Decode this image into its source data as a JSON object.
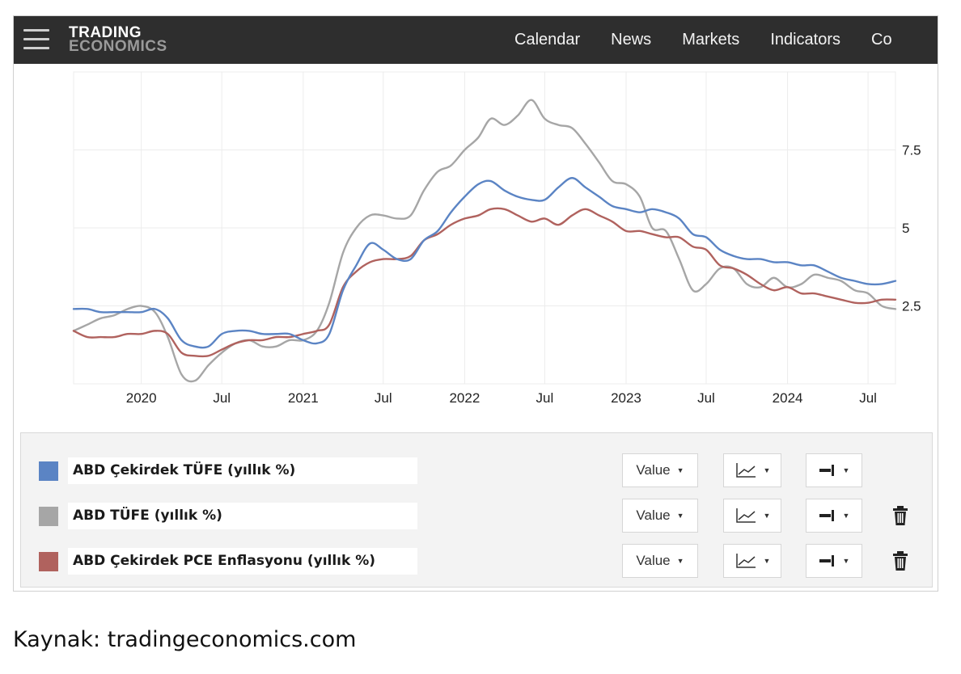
{
  "header": {
    "logo_line1": "TRADING",
    "logo_line2": "ECONOMICS",
    "nav": [
      "Calendar",
      "News",
      "Markets",
      "Indicators",
      "Co"
    ]
  },
  "chart_data": {
    "type": "line",
    "x_ticks": [
      "2020",
      "Jul",
      "2021",
      "Jul",
      "2022",
      "Jul",
      "2023",
      "Jul",
      "2024",
      "Jul"
    ],
    "y_ticks": [
      "2.5",
      "5",
      "7.5"
    ],
    "ylim": [
      0,
      10
    ],
    "grid": true,
    "series": [
      {
        "name": "ABD Çekirdek TÜFE (yıllık %)",
        "color": "#5b84c4",
        "values": [
          [
            "2019-08",
            2.4
          ],
          [
            "2019-09",
            2.4
          ],
          [
            "2019-10",
            2.3
          ],
          [
            "2019-11",
            2.3
          ],
          [
            "2019-12",
            2.3
          ],
          [
            "2020-01",
            2.3
          ],
          [
            "2020-02",
            2.4
          ],
          [
            "2020-03",
            2.1
          ],
          [
            "2020-04",
            1.4
          ],
          [
            "2020-05",
            1.2
          ],
          [
            "2020-06",
            1.2
          ],
          [
            "2020-07",
            1.6
          ],
          [
            "2020-08",
            1.7
          ],
          [
            "2020-09",
            1.7
          ],
          [
            "2020-10",
            1.6
          ],
          [
            "2020-11",
            1.6
          ],
          [
            "2020-12",
            1.6
          ],
          [
            "2021-01",
            1.4
          ],
          [
            "2021-02",
            1.3
          ],
          [
            "2021-03",
            1.6
          ],
          [
            "2021-04",
            3.0
          ],
          [
            "2021-05",
            3.8
          ],
          [
            "2021-06",
            4.5
          ],
          [
            "2021-07",
            4.3
          ],
          [
            "2021-08",
            4.0
          ],
          [
            "2021-09",
            4.0
          ],
          [
            "2021-10",
            4.6
          ],
          [
            "2021-11",
            4.9
          ],
          [
            "2021-12",
            5.5
          ],
          [
            "2022-01",
            6.0
          ],
          [
            "2022-02",
            6.4
          ],
          [
            "2022-03",
            6.5
          ],
          [
            "2022-04",
            6.2
          ],
          [
            "2022-05",
            6.0
          ],
          [
            "2022-06",
            5.9
          ],
          [
            "2022-07",
            5.9
          ],
          [
            "2022-08",
            6.3
          ],
          [
            "2022-09",
            6.6
          ],
          [
            "2022-10",
            6.3
          ],
          [
            "2022-11",
            6.0
          ],
          [
            "2022-12",
            5.7
          ],
          [
            "2023-01",
            5.6
          ],
          [
            "2023-02",
            5.5
          ],
          [
            "2023-03",
            5.6
          ],
          [
            "2023-04",
            5.5
          ],
          [
            "2023-05",
            5.3
          ],
          [
            "2023-06",
            4.8
          ],
          [
            "2023-07",
            4.7
          ],
          [
            "2023-08",
            4.3
          ],
          [
            "2023-09",
            4.1
          ],
          [
            "2023-10",
            4.0
          ],
          [
            "2023-11",
            4.0
          ],
          [
            "2023-12",
            3.9
          ],
          [
            "2024-01",
            3.9
          ],
          [
            "2024-02",
            3.8
          ],
          [
            "2024-03",
            3.8
          ],
          [
            "2024-04",
            3.6
          ],
          [
            "2024-05",
            3.4
          ],
          [
            "2024-06",
            3.3
          ],
          [
            "2024-07",
            3.2
          ],
          [
            "2024-08",
            3.2
          ],
          [
            "2024-09",
            3.3
          ]
        ]
      },
      {
        "name": "ABD TÜFE (yıllık %)",
        "color": "#a6a6a6",
        "values": [
          [
            "2019-08",
            1.7
          ],
          [
            "2019-09",
            1.9
          ],
          [
            "2019-10",
            2.1
          ],
          [
            "2019-11",
            2.2
          ],
          [
            "2019-12",
            2.4
          ],
          [
            "2020-01",
            2.5
          ],
          [
            "2020-02",
            2.3
          ],
          [
            "2020-03",
            1.5
          ],
          [
            "2020-04",
            0.3
          ],
          [
            "2020-05",
            0.1
          ],
          [
            "2020-06",
            0.6
          ],
          [
            "2020-07",
            1.0
          ],
          [
            "2020-08",
            1.3
          ],
          [
            "2020-09",
            1.4
          ],
          [
            "2020-10",
            1.2
          ],
          [
            "2020-11",
            1.2
          ],
          [
            "2020-12",
            1.4
          ],
          [
            "2021-01",
            1.4
          ],
          [
            "2021-02",
            1.7
          ],
          [
            "2021-03",
            2.6
          ],
          [
            "2021-04",
            4.2
          ],
          [
            "2021-05",
            5.0
          ],
          [
            "2021-06",
            5.4
          ],
          [
            "2021-07",
            5.4
          ],
          [
            "2021-08",
            5.3
          ],
          [
            "2021-09",
            5.4
          ],
          [
            "2021-10",
            6.2
          ],
          [
            "2021-11",
            6.8
          ],
          [
            "2021-12",
            7.0
          ],
          [
            "2022-01",
            7.5
          ],
          [
            "2022-02",
            7.9
          ],
          [
            "2022-03",
            8.5
          ],
          [
            "2022-04",
            8.3
          ],
          [
            "2022-05",
            8.6
          ],
          [
            "2022-06",
            9.1
          ],
          [
            "2022-07",
            8.5
          ],
          [
            "2022-08",
            8.3
          ],
          [
            "2022-09",
            8.2
          ],
          [
            "2022-10",
            7.7
          ],
          [
            "2022-11",
            7.1
          ],
          [
            "2022-12",
            6.5
          ],
          [
            "2023-01",
            6.4
          ],
          [
            "2023-02",
            6.0
          ],
          [
            "2023-03",
            5.0
          ],
          [
            "2023-04",
            4.9
          ],
          [
            "2023-05",
            4.0
          ],
          [
            "2023-06",
            3.0
          ],
          [
            "2023-07",
            3.2
          ],
          [
            "2023-08",
            3.7
          ],
          [
            "2023-09",
            3.7
          ],
          [
            "2023-10",
            3.2
          ],
          [
            "2023-11",
            3.1
          ],
          [
            "2023-12",
            3.4
          ],
          [
            "2024-01",
            3.1
          ],
          [
            "2024-02",
            3.2
          ],
          [
            "2024-03",
            3.5
          ],
          [
            "2024-04",
            3.4
          ],
          [
            "2024-05",
            3.3
          ],
          [
            "2024-06",
            3.0
          ],
          [
            "2024-07",
            2.9
          ],
          [
            "2024-08",
            2.5
          ],
          [
            "2024-09",
            2.4
          ]
        ]
      },
      {
        "name": "ABD Çekirdek PCE Enflasyonu (yıllık %)",
        "color": "#b0625e",
        "values": [
          [
            "2019-08",
            1.7
          ],
          [
            "2019-09",
            1.5
          ],
          [
            "2019-10",
            1.5
          ],
          [
            "2019-11",
            1.5
          ],
          [
            "2019-12",
            1.6
          ],
          [
            "2020-01",
            1.6
          ],
          [
            "2020-02",
            1.7
          ],
          [
            "2020-03",
            1.6
          ],
          [
            "2020-04",
            1.0
          ],
          [
            "2020-05",
            0.9
          ],
          [
            "2020-06",
            0.9
          ],
          [
            "2020-07",
            1.1
          ],
          [
            "2020-08",
            1.3
          ],
          [
            "2020-09",
            1.4
          ],
          [
            "2020-10",
            1.4
          ],
          [
            "2020-11",
            1.5
          ],
          [
            "2020-12",
            1.5
          ],
          [
            "2021-01",
            1.6
          ],
          [
            "2021-02",
            1.7
          ],
          [
            "2021-03",
            1.9
          ],
          [
            "2021-04",
            3.1
          ],
          [
            "2021-05",
            3.6
          ],
          [
            "2021-06",
            3.9
          ],
          [
            "2021-07",
            4.0
          ],
          [
            "2021-08",
            4.0
          ],
          [
            "2021-09",
            4.1
          ],
          [
            "2021-10",
            4.6
          ],
          [
            "2021-11",
            4.8
          ],
          [
            "2021-12",
            5.1
          ],
          [
            "2022-01",
            5.3
          ],
          [
            "2022-02",
            5.4
          ],
          [
            "2022-03",
            5.6
          ],
          [
            "2022-04",
            5.6
          ],
          [
            "2022-05",
            5.4
          ],
          [
            "2022-06",
            5.2
          ],
          [
            "2022-07",
            5.3
          ],
          [
            "2022-08",
            5.1
          ],
          [
            "2022-09",
            5.4
          ],
          [
            "2022-10",
            5.6
          ],
          [
            "2022-11",
            5.4
          ],
          [
            "2022-12",
            5.2
          ],
          [
            "2023-01",
            4.9
          ],
          [
            "2023-02",
            4.9
          ],
          [
            "2023-03",
            4.8
          ],
          [
            "2023-04",
            4.7
          ],
          [
            "2023-05",
            4.7
          ],
          [
            "2023-06",
            4.4
          ],
          [
            "2023-07",
            4.3
          ],
          [
            "2023-08",
            3.8
          ],
          [
            "2023-09",
            3.7
          ],
          [
            "2023-10",
            3.5
          ],
          [
            "2023-11",
            3.2
          ],
          [
            "2023-12",
            3.0
          ],
          [
            "2024-01",
            3.1
          ],
          [
            "2024-02",
            2.9
          ],
          [
            "2024-03",
            2.9
          ],
          [
            "2024-04",
            2.8
          ],
          [
            "2024-05",
            2.7
          ],
          [
            "2024-06",
            2.6
          ],
          [
            "2024-07",
            2.6
          ],
          [
            "2024-08",
            2.7
          ],
          [
            "2024-09",
            2.7
          ]
        ]
      }
    ]
  },
  "legend": {
    "control_value_label": "Value",
    "rows": [
      {
        "label": "ABD Çekirdek TÜFE (yıllık %)",
        "color": "#5b84c4",
        "deletable": false
      },
      {
        "label": "ABD TÜFE (yıllık %)",
        "color": "#a6a6a6",
        "deletable": true
      },
      {
        "label": "ABD Çekirdek PCE Enflasyonu (yıllık %)",
        "color": "#b0625e",
        "deletable": true
      }
    ]
  },
  "source_note": "Kaynak: tradingeconomics.com"
}
